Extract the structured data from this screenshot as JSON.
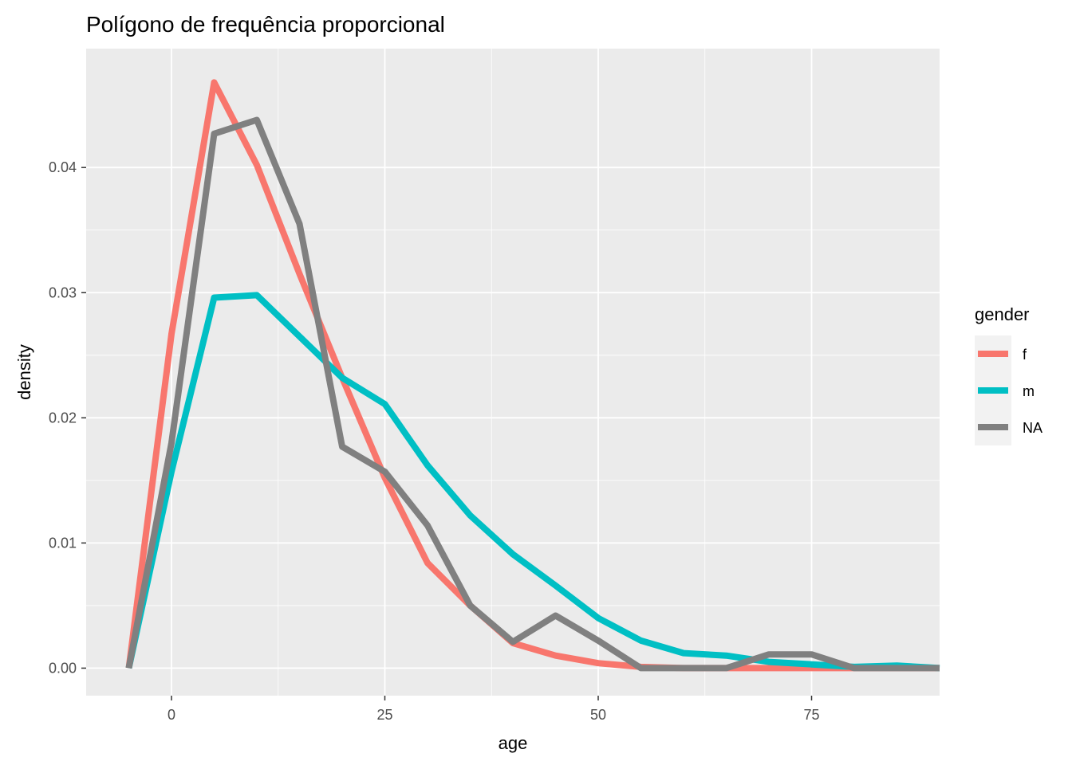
{
  "chart_data": {
    "type": "line",
    "title": "Polígono de frequência proporcional",
    "xlabel": "age",
    "ylabel": "density",
    "xlim": [
      -10,
      90
    ],
    "ylim": [
      -0.0022,
      0.0495
    ],
    "x_ticks": [
      0,
      25,
      50,
      75
    ],
    "x_tick_labels": [
      "0",
      "25",
      "50",
      "75"
    ],
    "y_ticks": [
      0,
      0.01,
      0.02,
      0.03,
      0.04
    ],
    "y_tick_labels": [
      "0.00",
      "0.01",
      "0.02",
      "0.03",
      "0.04"
    ],
    "grid": true,
    "legend": {
      "title": "gender",
      "position": "right"
    },
    "x": [
      -5,
      0,
      5,
      10,
      15,
      20,
      25,
      30,
      35,
      40,
      45,
      50,
      55,
      60,
      65,
      70,
      75,
      80,
      85,
      90
    ],
    "series": [
      {
        "name": "f",
        "color": "#F8766D",
        "values": [
          0,
          0.0267,
          0.0468,
          0.0402,
          0.0315,
          0.0232,
          0.0152,
          0.0084,
          0.005,
          0.002,
          0.001,
          0.0004,
          0.0001,
          0.0,
          0.0,
          0.0,
          0.0,
          0.0,
          0.0,
          0.0
        ]
      },
      {
        "name": "m",
        "color": "#00BFC4",
        "values": [
          0,
          0.0157,
          0.0296,
          0.0298,
          0.0265,
          0.0232,
          0.0211,
          0.0162,
          0.0122,
          0.0091,
          0.0066,
          0.004,
          0.0022,
          0.0012,
          0.001,
          0.0005,
          0.0003,
          0.0001,
          0.0002,
          0.0
        ]
      },
      {
        "name": "NA",
        "color": "#808080",
        "values": [
          0,
          0.018,
          0.0427,
          0.0438,
          0.0355,
          0.0177,
          0.0157,
          0.0114,
          0.005,
          0.0021,
          0.0042,
          0.0022,
          0.0,
          0.0,
          0.0,
          0.0011,
          0.0011,
          0.0,
          0.0,
          0.0
        ]
      }
    ]
  }
}
